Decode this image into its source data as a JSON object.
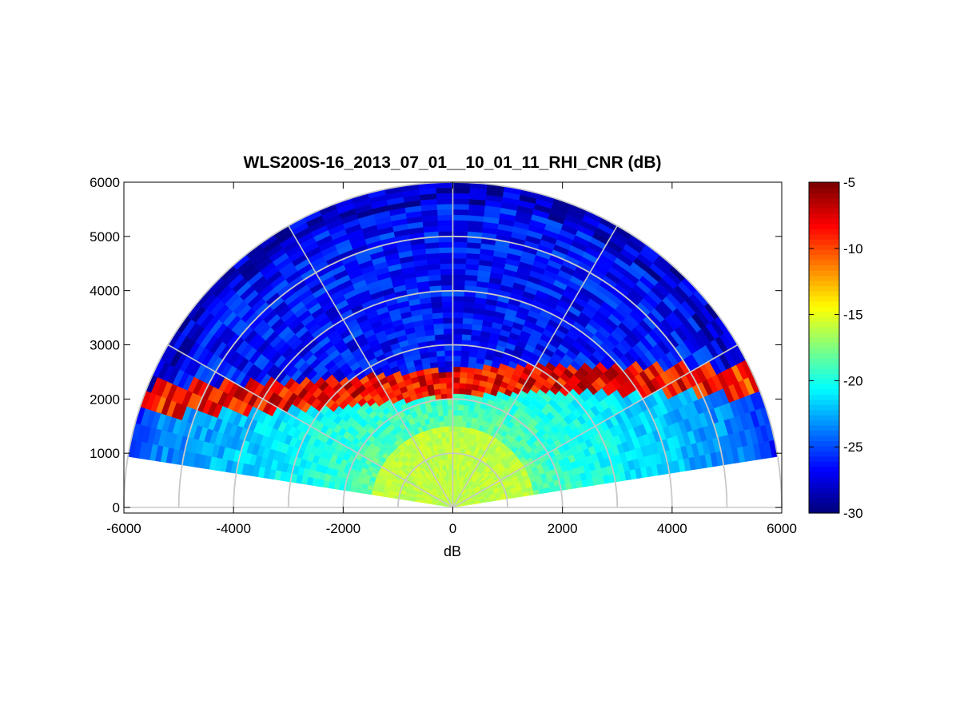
{
  "chart_data": {
    "type": "heatmap",
    "subtype": "polar-rhi-sector",
    "title": "WLS200S-16_2013_07_01__10_01_11_RHI_CNR (dB)",
    "xlabel": "dB",
    "ylabel": "",
    "xlim": [
      -6000,
      6000
    ],
    "ylim": [
      0,
      6000
    ],
    "x_ticks": [
      -6000,
      -4000,
      -2000,
      0,
      2000,
      4000,
      6000
    ],
    "x_tick_labels": [
      "-6000",
      "-4000",
      "-2000",
      "0",
      "2000",
      "4000",
      "6000"
    ],
    "y_ticks": [
      0,
      1000,
      2000,
      3000,
      4000,
      5000,
      6000
    ],
    "y_tick_labels": [
      "0",
      "1000",
      "2000",
      "3000",
      "4000",
      "5000",
      "6000"
    ],
    "polar_grid": {
      "range_rings": [
        1000,
        2000,
        3000,
        4000,
        5000,
        6000
      ],
      "spokes_deg": [
        0,
        30,
        60,
        90,
        120,
        150,
        180
      ],
      "grid_color": "#c8c8c8"
    },
    "scan": {
      "elevation_min_deg": 9,
      "elevation_max_deg": 171,
      "max_range": 6000,
      "gate_spacing": 100
    },
    "colorbar": {
      "colormap": "jet",
      "clim": [
        -30,
        -5
      ],
      "ticks": [
        -30,
        -25,
        -20,
        -15,
        -10,
        -5
      ],
      "tick_labels": [
        "-30",
        "-25",
        "-20",
        "-15",
        "-10",
        "-5"
      ]
    },
    "value_description": "CNR in dB vs range and elevation",
    "cnr_profile": {
      "near_range_values_db": [
        -17,
        -16
      ],
      "strong_layer_top_db": -5,
      "background_high_db": -27,
      "mid_range_db": -21
    }
  }
}
